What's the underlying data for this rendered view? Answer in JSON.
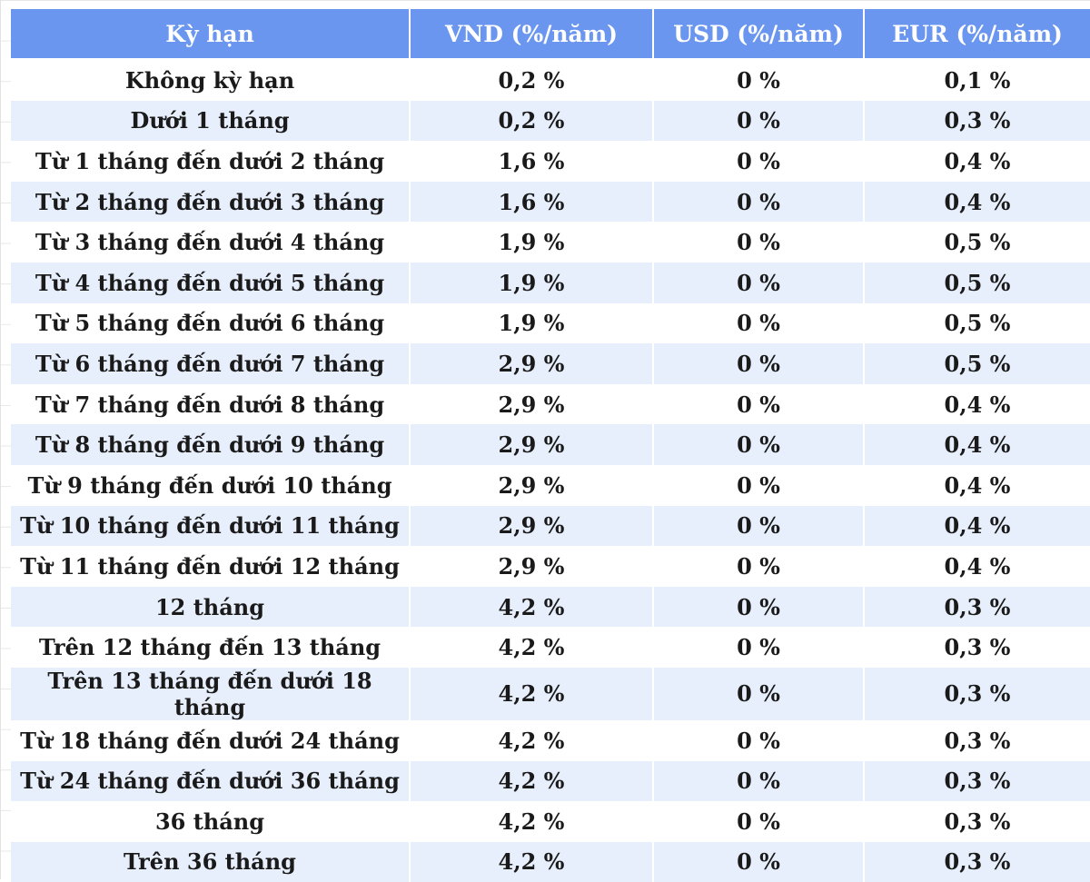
{
  "table": {
    "headers": {
      "term": "Kỳ hạn",
      "vnd": "VND (%/năm)",
      "usd": "USD (%/năm)",
      "eur": "EUR (%/năm)"
    },
    "rows": [
      {
        "term": "Không kỳ hạn",
        "vnd": "0,2 %",
        "usd": "0 %",
        "eur": "0,1 %"
      },
      {
        "term": "Dưới 1 tháng",
        "vnd": "0,2 %",
        "usd": "0 %",
        "eur": "0,3 %"
      },
      {
        "term": "Từ 1 tháng đến dưới 2 tháng",
        "vnd": "1,6 %",
        "usd": "0 %",
        "eur": "0,4 %"
      },
      {
        "term": "Từ 2 tháng đến dưới 3 tháng",
        "vnd": "1,6 %",
        "usd": "0 %",
        "eur": "0,4 %"
      },
      {
        "term": "Từ 3 tháng đến dưới 4 tháng",
        "vnd": "1,9 %",
        "usd": "0 %",
        "eur": "0,5 %"
      },
      {
        "term": "Từ 4 tháng đến dưới 5 tháng",
        "vnd": "1,9 %",
        "usd": "0 %",
        "eur": "0,5 %"
      },
      {
        "term": "Từ 5 tháng đến dưới 6 tháng",
        "vnd": "1,9 %",
        "usd": "0 %",
        "eur": "0,5 %"
      },
      {
        "term": "Từ 6 tháng đến dưới 7 tháng",
        "vnd": "2,9 %",
        "usd": "0 %",
        "eur": "0,5 %"
      },
      {
        "term": "Từ 7 tháng đến dưới 8 tháng",
        "vnd": "2,9 %",
        "usd": "0 %",
        "eur": "0,4 %"
      },
      {
        "term": "Từ 8 tháng đến dưới 9 tháng",
        "vnd": "2,9 %",
        "usd": "0 %",
        "eur": "0,4 %"
      },
      {
        "term": "Từ 9 tháng đến dưới 10 tháng",
        "vnd": "2,9 %",
        "usd": "0 %",
        "eur": "0,4 %"
      },
      {
        "term": "Từ 10 tháng đến dưới 11 tháng",
        "vnd": "2,9 %",
        "usd": "0 %",
        "eur": "0,4 %"
      },
      {
        "term": "Từ 11 tháng đến dưới 12 tháng",
        "vnd": "2,9 %",
        "usd": "0 %",
        "eur": "0,4 %"
      },
      {
        "term": "12 tháng",
        "vnd": "4,2 %",
        "usd": "0 %",
        "eur": "0,3 %"
      },
      {
        "term": "Trên 12 tháng đến 13 tháng",
        "vnd": "4,2 %",
        "usd": "0 %",
        "eur": "0,3 %"
      },
      {
        "term": "Trên 13 tháng đến dưới 18 tháng",
        "vnd": "4,2 %",
        "usd": "0 %",
        "eur": "0,3 %"
      },
      {
        "term": "Từ 18 tháng đến dưới 24 tháng",
        "vnd": "4,2 %",
        "usd": "0 %",
        "eur": "0,3 %"
      },
      {
        "term": "Từ 24 tháng đến dưới 36 tháng",
        "vnd": "4,2 %",
        "usd": "0 %",
        "eur": "0,3 %"
      },
      {
        "term": "36 tháng",
        "vnd": "4,2 %",
        "usd": "0 %",
        "eur": "0,3 %"
      },
      {
        "term": "Trên 36 tháng",
        "vnd": "4,2 %",
        "usd": "0 %",
        "eur": "0,3 %"
      }
    ]
  },
  "colors": {
    "header_bg": "#6b96ef",
    "header_text": "#ffffff",
    "stripe_bg": "#e8effc",
    "cell_text": "#1a1a1a"
  }
}
